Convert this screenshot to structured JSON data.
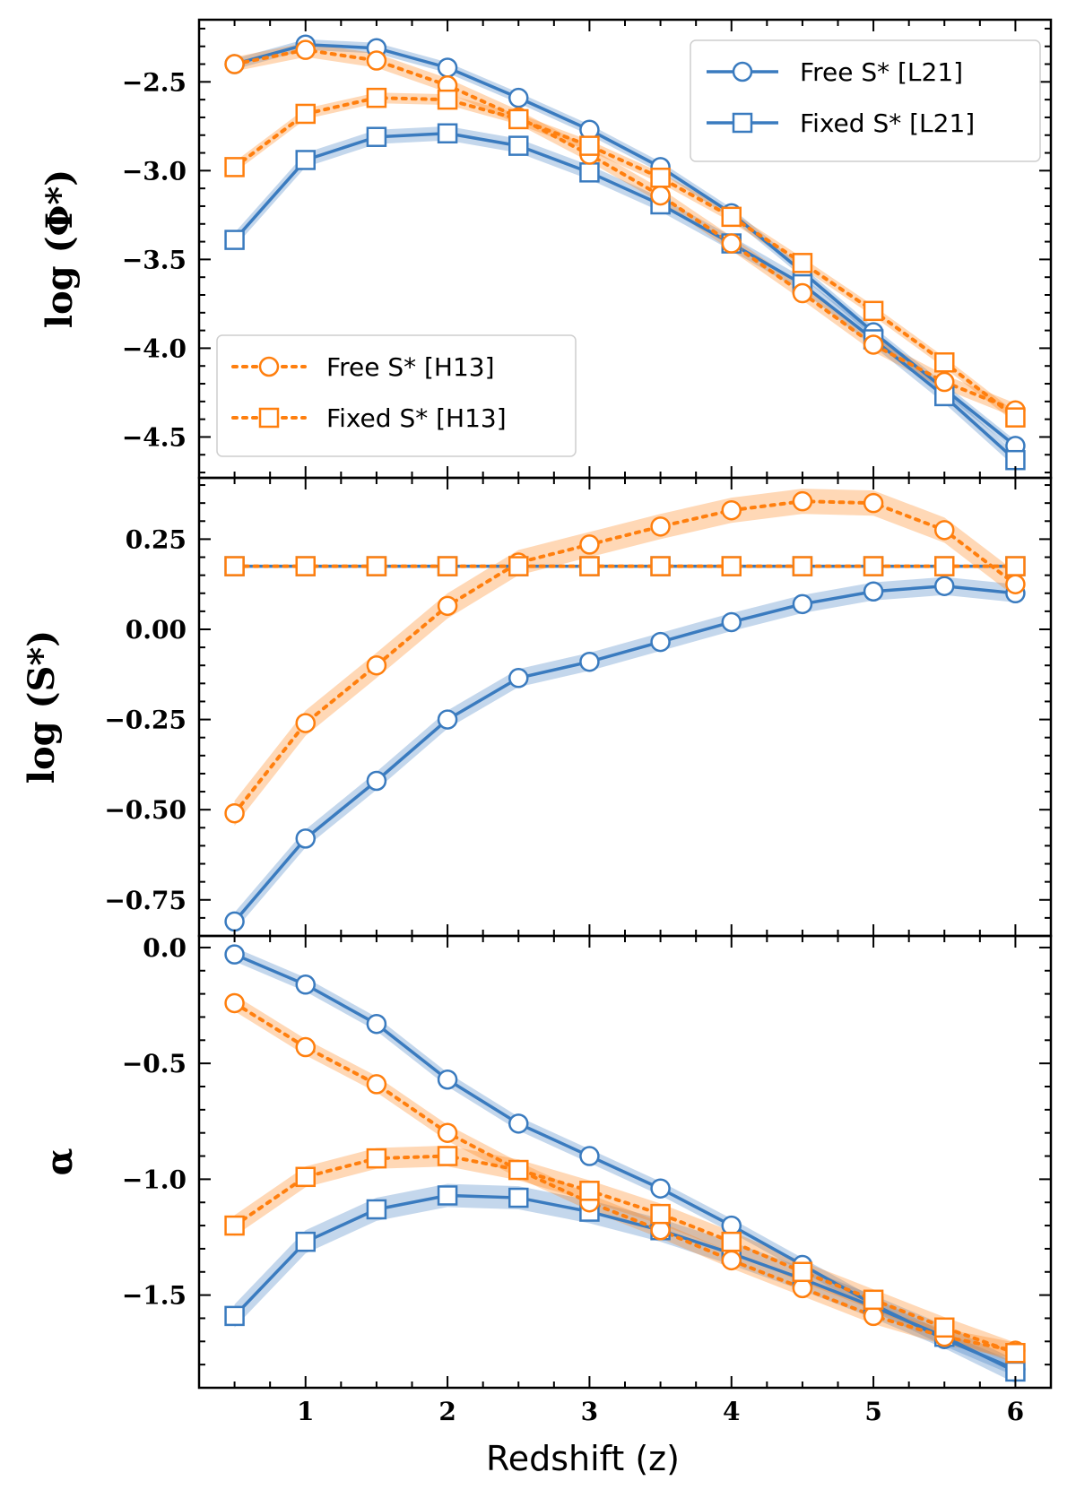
{
  "chart_data": [
    {
      "type": "line",
      "panel": "top",
      "ylabel": "log (Φ*)",
      "ylim": [
        -4.73,
        -2.15
      ],
      "yticks": [
        -2.5,
        -3.0,
        -3.5,
        -4.0,
        -4.5
      ],
      "ytick_labels": [
        "−2.5",
        "−3.0",
        "−3.5",
        "−4.0",
        "−4.5"
      ],
      "x": [
        0.5,
        1.0,
        1.5,
        2.0,
        2.5,
        3.0,
        3.5,
        4.0,
        4.5,
        5.0,
        5.5,
        6.0
      ],
      "series": [
        {
          "name": "Free S* [L21]",
          "color": "#3a7bbf",
          "style": "solid",
          "marker": "circle",
          "values": [
            -2.4,
            -2.29,
            -2.31,
            -2.42,
            -2.59,
            -2.77,
            -2.98,
            -3.24,
            -3.57,
            -3.91,
            -4.23,
            -4.55
          ],
          "band": 0.03
        },
        {
          "name": "Fixed S* [L21]",
          "color": "#3a7bbf",
          "style": "solid",
          "marker": "square",
          "values": [
            -3.39,
            -2.94,
            -2.81,
            -2.79,
            -2.86,
            -3.01,
            -3.19,
            -3.41,
            -3.64,
            -3.95,
            -4.27,
            -4.63
          ],
          "band": 0.04
        },
        {
          "name": "Free S* [H13]",
          "color": "#ff7f0e",
          "style": "dotted",
          "marker": "circle",
          "values": [
            -2.4,
            -2.32,
            -2.38,
            -2.52,
            -2.7,
            -2.91,
            -3.14,
            -3.41,
            -3.69,
            -3.98,
            -4.19,
            -4.35
          ],
          "band": 0.04
        },
        {
          "name": "Fixed S* [H13]",
          "color": "#ff7f0e",
          "style": "dotted",
          "marker": "square",
          "values": [
            -2.98,
            -2.68,
            -2.59,
            -2.6,
            -2.71,
            -2.86,
            -3.04,
            -3.26,
            -3.52,
            -3.79,
            -4.08,
            -4.39
          ],
          "band": 0.03
        }
      ],
      "legend": [
        {
          "label": "Free S* [L21]",
          "placement": "upper-right"
        },
        {
          "label": "Fixed S* [L21]",
          "placement": "upper-right"
        },
        {
          "label": "Free S* [H13]",
          "placement": "lower-left"
        },
        {
          "label": "Fixed S* [H13]",
          "placement": "lower-left"
        }
      ]
    },
    {
      "type": "line",
      "panel": "middle",
      "ylabel": "log (S*)",
      "ylim": [
        -0.85,
        0.42
      ],
      "yticks": [
        0.25,
        0.0,
        -0.25,
        -0.5,
        -0.75
      ],
      "ytick_labels": [
        "0.25",
        "0.00",
        "−0.25",
        "−0.50",
        "−0.75"
      ],
      "x": [
        0.5,
        1.0,
        1.5,
        2.0,
        2.5,
        3.0,
        3.5,
        4.0,
        4.5,
        5.0,
        5.5,
        6.0
      ],
      "series": [
        {
          "name": "Free S* [L21]",
          "color": "#3a7bbf",
          "style": "solid",
          "marker": "circle",
          "values": [
            -0.81,
            -0.58,
            -0.42,
            -0.25,
            -0.135,
            -0.09,
            -0.035,
            0.02,
            0.07,
            0.105,
            0.12,
            0.1
          ],
          "band": 0.025
        },
        {
          "name": "Fixed S* [L21]",
          "color": "#3a7bbf",
          "style": "solid",
          "marker": "square",
          "values": [
            0.175,
            0.175,
            0.175,
            0.175,
            0.175,
            0.175,
            0.175,
            0.175,
            0.175,
            0.175,
            0.175,
            0.175
          ],
          "band": 0
        },
        {
          "name": "Free S* [H13]",
          "color": "#ff7f0e",
          "style": "dotted",
          "marker": "circle",
          "values": [
            -0.51,
            -0.26,
            -0.1,
            0.065,
            0.185,
            0.235,
            0.285,
            0.33,
            0.355,
            0.35,
            0.275,
            0.125
          ],
          "band": 0.035
        },
        {
          "name": "Fixed S* [H13]",
          "color": "#ff7f0e",
          "style": "dotted",
          "marker": "square",
          "values": [
            0.175,
            0.175,
            0.175,
            0.175,
            0.175,
            0.175,
            0.175,
            0.175,
            0.175,
            0.175,
            0.175,
            0.175
          ],
          "band": 0
        }
      ]
    },
    {
      "type": "line",
      "panel": "bottom",
      "ylabel": "α",
      "xlabel": "Redshift (z)",
      "ylim": [
        -1.9,
        0.05
      ],
      "yticks": [
        0.0,
        -0.5,
        -1.0,
        -1.5
      ],
      "ytick_labels": [
        "0.0",
        "−0.5",
        "−1.0",
        "−1.5"
      ],
      "xlim": [
        0.25,
        6.25
      ],
      "xticks": [
        1,
        2,
        3,
        4,
        5,
        6
      ],
      "xtick_labels": [
        "1",
        "2",
        "3",
        "4",
        "5",
        "6"
      ],
      "x": [
        0.5,
        1.0,
        1.5,
        2.0,
        2.5,
        3.0,
        3.5,
        4.0,
        4.5,
        5.0,
        5.5,
        6.0
      ],
      "series": [
        {
          "name": "Free S* [L21]",
          "color": "#3a7bbf",
          "style": "solid",
          "marker": "circle",
          "values": [
            -0.03,
            -0.16,
            -0.33,
            -0.57,
            -0.76,
            -0.9,
            -1.04,
            -1.2,
            -1.37,
            -1.54,
            -1.69,
            -1.82
          ],
          "band": 0.03
        },
        {
          "name": "Fixed S* [L21]",
          "color": "#3a7bbf",
          "style": "solid",
          "marker": "square",
          "values": [
            -1.59,
            -1.27,
            -1.13,
            -1.07,
            -1.08,
            -1.14,
            -1.22,
            -1.32,
            -1.43,
            -1.55,
            -1.68,
            -1.83
          ],
          "band": 0.05
        },
        {
          "name": "Free S* [H13]",
          "color": "#ff7f0e",
          "style": "dotted",
          "marker": "circle",
          "values": [
            -0.24,
            -0.43,
            -0.59,
            -0.8,
            -0.96,
            -1.1,
            -1.22,
            -1.35,
            -1.47,
            -1.59,
            -1.68,
            -1.74
          ],
          "band": 0.035
        },
        {
          "name": "Fixed S* [H13]",
          "color": "#ff7f0e",
          "style": "dotted",
          "marker": "square",
          "values": [
            -1.2,
            -0.99,
            -0.91,
            -0.9,
            -0.96,
            -1.05,
            -1.15,
            -1.27,
            -1.4,
            -1.52,
            -1.64,
            -1.75
          ],
          "band": 0.045
        }
      ]
    }
  ]
}
